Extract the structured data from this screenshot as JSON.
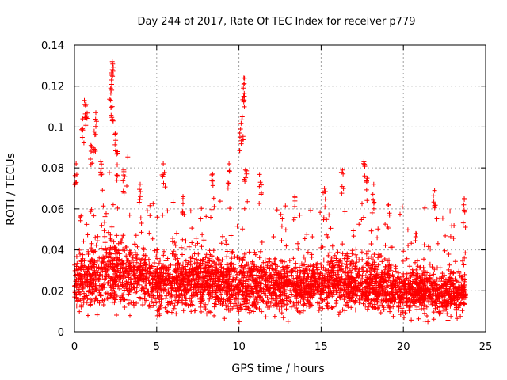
{
  "chart_data": {
    "type": "scatter",
    "title": "Day 244 of 2017, Rate Of TEC Index for receiver p779",
    "xlabel": "GPS time / hours",
    "ylabel": "ROTI / TECUs",
    "xlim": [
      0,
      25
    ],
    "ylim": [
      0,
      0.14
    ],
    "xticks": [
      0,
      5,
      10,
      15,
      20,
      25
    ],
    "xtick_labels": [
      "0",
      "5",
      "10",
      "15",
      "20",
      "25"
    ],
    "yticks": [
      0,
      0.02,
      0.04,
      0.06,
      0.08,
      0.1,
      0.12,
      0.14
    ],
    "ytick_labels": [
      "0",
      "0.02",
      "0.04",
      "0.06",
      "0.08",
      "0.1",
      "0.12",
      "0.14"
    ],
    "grid": true,
    "marker": "+",
    "color": "#ff0000",
    "sampling": {
      "x_start": 0,
      "x_end": 23.8,
      "points_per_hour": 160,
      "seed": 244
    },
    "baseline_profile": [
      {
        "x": 0,
        "median": 0.022,
        "spread": 0.012
      },
      {
        "x": 1,
        "median": 0.027,
        "spread": 0.015
      },
      {
        "x": 2.5,
        "median": 0.03,
        "spread": 0.015
      },
      {
        "x": 4,
        "median": 0.026,
        "spread": 0.013
      },
      {
        "x": 6,
        "median": 0.025,
        "spread": 0.012
      },
      {
        "x": 8,
        "median": 0.024,
        "spread": 0.012
      },
      {
        "x": 10,
        "median": 0.024,
        "spread": 0.012
      },
      {
        "x": 12,
        "median": 0.022,
        "spread": 0.011
      },
      {
        "x": 14,
        "median": 0.022,
        "spread": 0.011
      },
      {
        "x": 16,
        "median": 0.024,
        "spread": 0.012
      },
      {
        "x": 18,
        "median": 0.023,
        "spread": 0.011
      },
      {
        "x": 20,
        "median": 0.02,
        "spread": 0.01
      },
      {
        "x": 22,
        "median": 0.019,
        "spread": 0.009
      },
      {
        "x": 23.8,
        "median": 0.019,
        "spread": 0.009
      }
    ],
    "spikes": [
      {
        "x": 0.6,
        "y": 0.113
      },
      {
        "x": 0.7,
        "y": 0.111
      },
      {
        "x": 1.3,
        "y": 0.107
      },
      {
        "x": 1.2,
        "y": 0.098
      },
      {
        "x": 1.0,
        "y": 0.091
      },
      {
        "x": 1.6,
        "y": 0.083
      },
      {
        "x": 2.3,
        "y": 0.132
      },
      {
        "x": 2.3,
        "y": 0.128
      },
      {
        "x": 2.2,
        "y": 0.119
      },
      {
        "x": 2.3,
        "y": 0.11
      },
      {
        "x": 2.5,
        "y": 0.097
      },
      {
        "x": 2.6,
        "y": 0.088
      },
      {
        "x": 3.0,
        "y": 0.079
      },
      {
        "x": 0.5,
        "y": 0.104
      },
      {
        "x": 0.1,
        "y": 0.082
      },
      {
        "x": 5.4,
        "y": 0.082
      },
      {
        "x": 8.4,
        "y": 0.077
      },
      {
        "x": 9.4,
        "y": 0.082
      },
      {
        "x": 10.3,
        "y": 0.124
      },
      {
        "x": 10.3,
        "y": 0.121
      },
      {
        "x": 10.2,
        "y": 0.105
      },
      {
        "x": 10.1,
        "y": 0.099
      },
      {
        "x": 10.4,
        "y": 0.079
      },
      {
        "x": 11.3,
        "y": 0.073
      },
      {
        "x": 15.2,
        "y": 0.07
      },
      {
        "x": 16.3,
        "y": 0.079
      },
      {
        "x": 17.6,
        "y": 0.083
      },
      {
        "x": 17.8,
        "y": 0.075
      },
      {
        "x": 18.2,
        "y": 0.072
      },
      {
        "x": 21.9,
        "y": 0.069
      },
      {
        "x": 23.7,
        "y": 0.065
      },
      {
        "x": 4.0,
        "y": 0.072
      },
      {
        "x": 6.6,
        "y": 0.066
      },
      {
        "x": 13.4,
        "y": 0.066
      },
      {
        "x": 19.1,
        "y": 0.062
      }
    ]
  }
}
